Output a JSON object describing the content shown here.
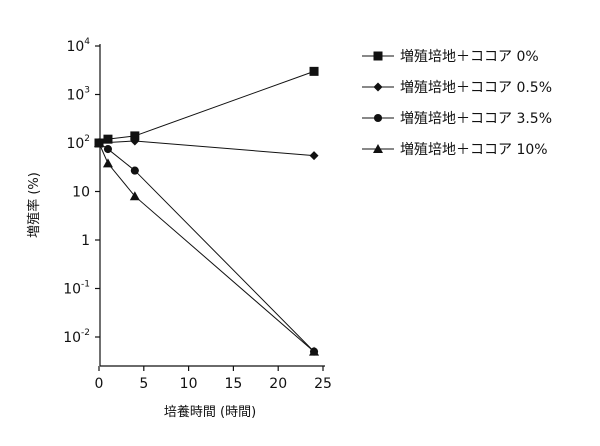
{
  "chart_data": {
    "type": "line",
    "xlabel": "培養時間 (時間)",
    "ylabel": "増殖率 (%)",
    "yscale": "log",
    "xlim": [
      0,
      25
    ],
    "ylim": [
      0.005,
      10000
    ],
    "x_ticks": [
      {
        "value": 0,
        "label": "0"
      },
      {
        "value": 5,
        "label": "5"
      },
      {
        "value": 10,
        "label": "10"
      },
      {
        "value": 15,
        "label": "15"
      },
      {
        "value": 20,
        "label": "20"
      },
      {
        "value": 25,
        "label": "25"
      }
    ],
    "y_ticks": [
      {
        "value": 0.01,
        "base": "10",
        "exp": "-2"
      },
      {
        "value": 0.1,
        "base": "10",
        "exp": "-1"
      },
      {
        "value": 1,
        "base": "1",
        "exp": ""
      },
      {
        "value": 10,
        "base": "10",
        "exp": ""
      },
      {
        "value": 100,
        "base": "10",
        "exp": "2"
      },
      {
        "value": 1000,
        "base": "10",
        "exp": "3"
      },
      {
        "value": 10000,
        "base": "10",
        "exp": "4"
      }
    ],
    "legend_position": "right",
    "series": [
      {
        "name": "増殖培地＋ココア 0%",
        "marker": "square",
        "points": [
          {
            "x": 0,
            "y": 100
          },
          {
            "x": 1,
            "y": 120
          },
          {
            "x": 4,
            "y": 140
          },
          {
            "x": 24,
            "y": 3000
          }
        ]
      },
      {
        "name": "増殖培地＋ココア 0.5%",
        "marker": "diamond",
        "points": [
          {
            "x": 0,
            "y": 100
          },
          {
            "x": 4,
            "y": 110
          },
          {
            "x": 24,
            "y": 55
          }
        ]
      },
      {
        "name": "増殖培地＋ココア 3.5%",
        "marker": "circle",
        "points": [
          {
            "x": 0,
            "y": 100
          },
          {
            "x": 1,
            "y": 75
          },
          {
            "x": 4,
            "y": 27
          },
          {
            "x": 24,
            "y": 0.005
          }
        ]
      },
      {
        "name": "増殖培地＋ココア 10%",
        "marker": "triangle",
        "points": [
          {
            "x": 0,
            "y": 100
          },
          {
            "x": 1,
            "y": 38
          },
          {
            "x": 4,
            "y": 8
          },
          {
            "x": 24,
            "y": 0.005
          }
        ]
      }
    ]
  }
}
